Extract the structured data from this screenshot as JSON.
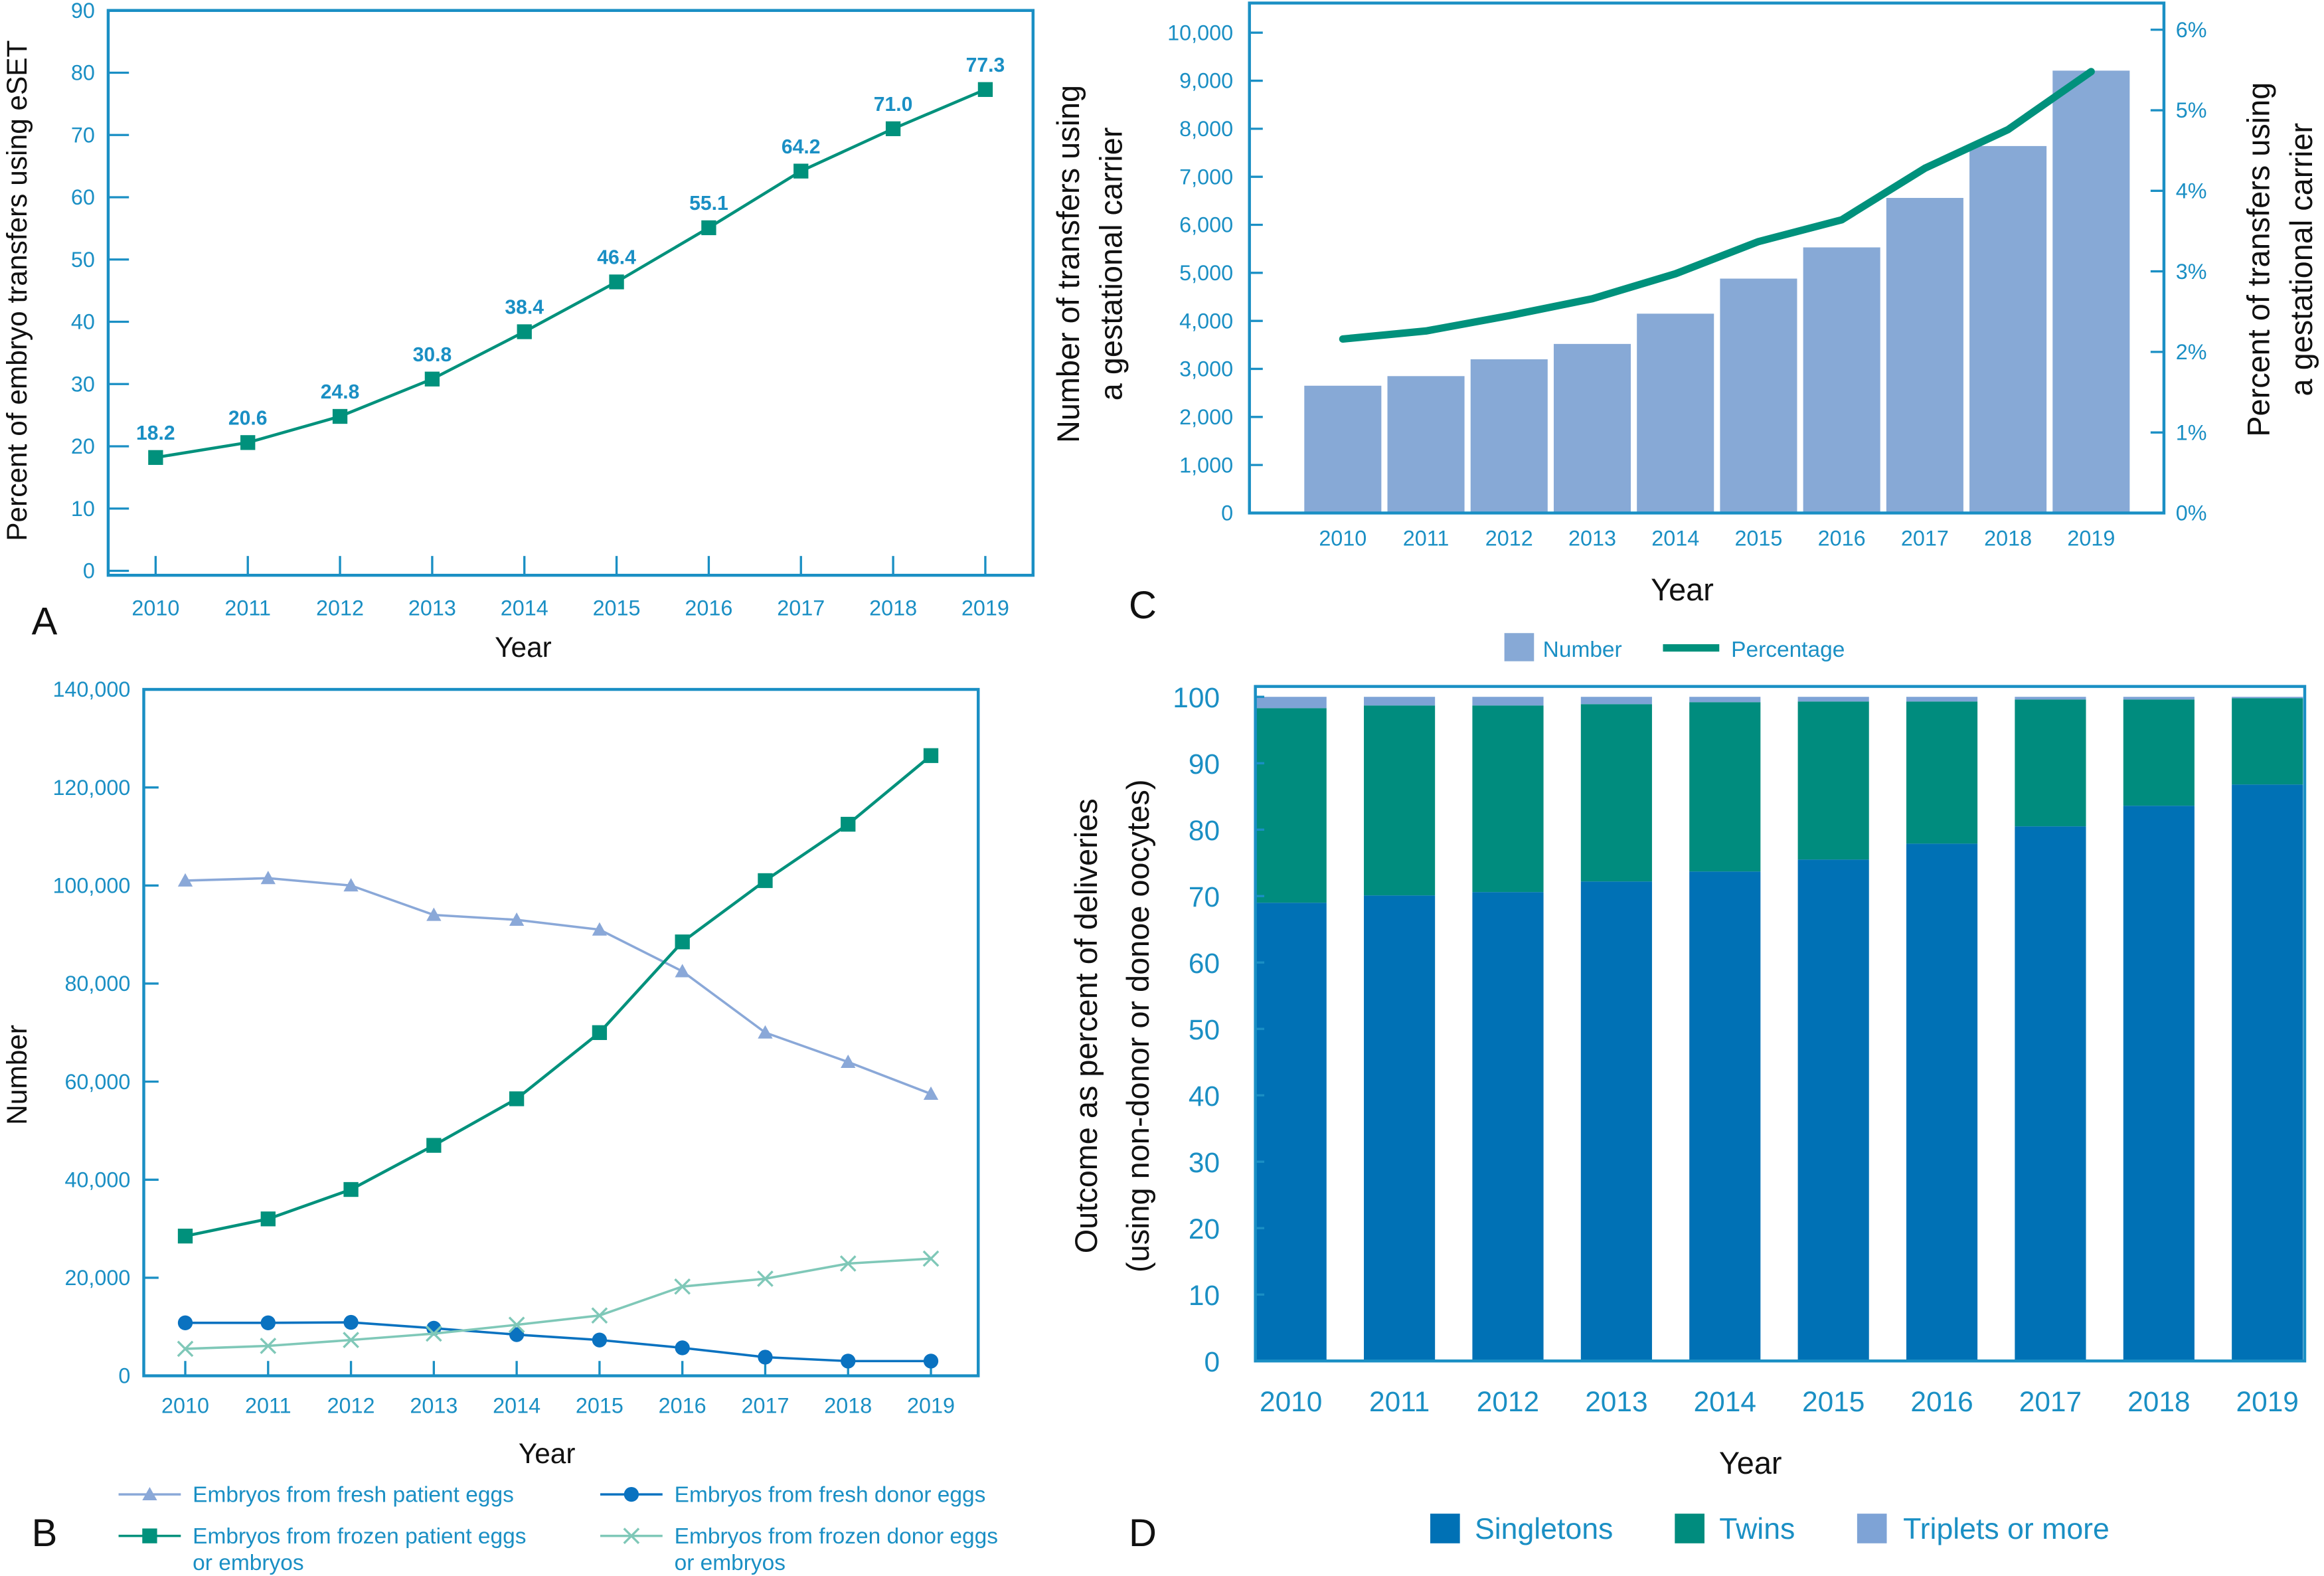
{
  "chart_data": [
    {
      "panel": "A",
      "type": "line",
      "categories": [
        "2010",
        "2011",
        "2012",
        "2013",
        "2014",
        "2015",
        "2016",
        "2017",
        "2018",
        "2019"
      ],
      "series": [
        {
          "values": [
            18.2,
            20.6,
            24.8,
            30.8,
            38.4,
            46.4,
            55.1,
            64.2,
            71.0,
            77.3
          ]
        }
      ],
      "data_labels": [
        "18.2",
        "20.6",
        "24.8",
        "30.8",
        "38.4",
        "46.4",
        "55.1",
        "64.2",
        "71.0",
        "77.3"
      ],
      "xlabel": "Year",
      "ylabel": "Percent of embryo transfers using eSET",
      "ylim": [
        0,
        90
      ],
      "yticks": [
        "0",
        "10",
        "20",
        "30",
        "40",
        "50",
        "60",
        "70",
        "80",
        "90"
      ],
      "grid": false,
      "colors": {
        "line": "#00917c",
        "axis": "#1a8fc4"
      }
    },
    {
      "panel": "B",
      "type": "line",
      "categories": [
        "2010",
        "2011",
        "2012",
        "2013",
        "2014",
        "2015",
        "2016",
        "2017",
        "2018",
        "2019"
      ],
      "series": [
        {
          "name": "Embryos from fresh patient eggs",
          "marker": "triangle",
          "color": "#8aa8d8",
          "values": [
            101000,
            101500,
            100000,
            94000,
            93000,
            91000,
            82500,
            70000,
            64000,
            57500
          ]
        },
        {
          "name": "Embryos from frozen patient eggs or embryos",
          "name_lines": [
            "Embryos from frozen patient eggs",
            "or embryos"
          ],
          "marker": "square",
          "color": "#00917c",
          "values": [
            28500,
            32000,
            38000,
            47000,
            56500,
            70000,
            88500,
            101000,
            112500,
            126500
          ]
        },
        {
          "name": "Embryos from fresh donor eggs",
          "marker": "circle",
          "color": "#0a72c0",
          "values": [
            10800,
            10800,
            10900,
            9700,
            8400,
            7300,
            5700,
            3800,
            3000,
            3000
          ]
        },
        {
          "name": "Embryos from frozen donor eggs or embryos",
          "name_lines": [
            "Embryos from frozen donor eggs",
            "or embryos"
          ],
          "marker": "x",
          "color": "#7fc8b8",
          "values": [
            5500,
            6100,
            7300,
            8600,
            10400,
            12300,
            18200,
            19800,
            22900,
            23900
          ]
        }
      ],
      "xlabel": "Year",
      "ylabel": "Number",
      "ylim": [
        0,
        140000
      ],
      "yticks": [
        "0",
        "20,000",
        "40,000",
        "60,000",
        "80,000",
        "100,000",
        "120,000",
        "140,000"
      ],
      "legend": "bottom",
      "grid": false
    },
    {
      "panel": "C",
      "type": "bar+line",
      "categories": [
        "2010",
        "2011",
        "2012",
        "2013",
        "2014",
        "2015",
        "2016",
        "2017",
        "2018",
        "2019"
      ],
      "series": [
        {
          "name": "Number",
          "type": "bar",
          "axis": "left",
          "color": "#87a9d6",
          "values": [
            2650,
            2850,
            3200,
            3520,
            4150,
            4880,
            5530,
            6560,
            7640,
            9210
          ]
        },
        {
          "name": "Percentage",
          "type": "line",
          "axis": "right",
          "color": "#00917c",
          "values": [
            2.16,
            2.26,
            2.45,
            2.66,
            2.97,
            3.37,
            3.64,
            4.28,
            4.76,
            5.48
          ]
        }
      ],
      "xlabel": "Year",
      "ylabel_lines": [
        "Number of transfers using",
        "a gestational carrier"
      ],
      "y2label_lines": [
        "Percent of transfers using",
        "a gestational carrier"
      ],
      "ylim": [
        0,
        10000
      ],
      "y2lim": [
        0,
        6
      ],
      "yticks": [
        "0",
        "1,000",
        "2,000",
        "3,000",
        "4,000",
        "5,000",
        "6,000",
        "7,000",
        "8,000",
        "9,000",
        "10,000"
      ],
      "y2ticks": [
        "0%",
        "1%",
        "2%",
        "3%",
        "4%",
        "5%",
        "6%"
      ],
      "legend": "bottom",
      "grid": false
    },
    {
      "panel": "D",
      "type": "bar",
      "stacked": true,
      "categories": [
        "2010",
        "2011",
        "2012",
        "2013",
        "2014",
        "2015",
        "2016",
        "2017",
        "2018",
        "2019"
      ],
      "series": [
        {
          "name": "Singletons",
          "color": "#0071b5",
          "values": [
            69.0,
            70.1,
            70.6,
            72.2,
            73.7,
            75.5,
            77.9,
            80.5,
            83.6,
            86.8
          ]
        },
        {
          "name": "Twins",
          "color": "#008c7e",
          "values": [
            29.3,
            28.6,
            28.1,
            26.7,
            25.5,
            23.8,
            21.4,
            19.1,
            16.0,
            13.0
          ]
        },
        {
          "name": "Triplets or more",
          "color": "#7ea3d6",
          "values": [
            1.7,
            1.3,
            1.3,
            1.1,
            0.8,
            0.7,
            0.7,
            0.4,
            0.4,
            0.2
          ]
        }
      ],
      "xlabel": "Year",
      "ylabel_lines": [
        "Outcome as percent of deliveries",
        "(using non-donor or donoe oocytes)"
      ],
      "ylim": [
        0,
        100
      ],
      "yticks": [
        "0",
        "10",
        "20",
        "30",
        "40",
        "50",
        "60",
        "70",
        "80",
        "90",
        "100"
      ],
      "legend": "bottom",
      "grid": false
    }
  ],
  "panel_letters": [
    "A",
    "B",
    "C",
    "D"
  ],
  "colors": {
    "axis": "#1a8fc4",
    "text_blue": "#1a8fc4"
  }
}
